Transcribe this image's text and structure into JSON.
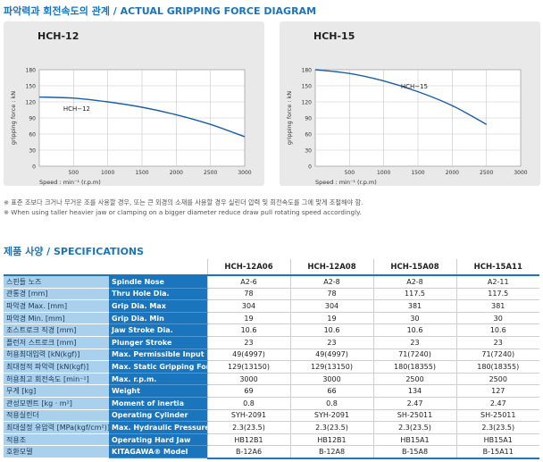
{
  "chart_section_title": "파악력과 회전속도의 관계 / ACTUAL GRIPPING FORCE DIAGRAM",
  "chart_data": [
    {
      "type": "line",
      "title": "HCH-12",
      "xlabel": "Speed : min⁻¹ (r.p.m)",
      "ylabel": "gripping force : kN",
      "xlim": [
        0,
        3000
      ],
      "ylim": [
        0,
        180
      ],
      "xticks": [
        "500",
        "1000",
        "1500",
        "2000",
        "2500",
        "3000"
      ],
      "yticks": [
        "0",
        "30",
        "60",
        "90",
        "120",
        "150",
        "180"
      ],
      "grid": true,
      "series": [
        {
          "name": "HCH−12",
          "x": [
            0,
            500,
            1000,
            1500,
            2000,
            2500,
            3000
          ],
          "y": [
            129,
            127,
            120,
            110,
            96,
            78,
            55
          ]
        }
      ]
    },
    {
      "type": "line",
      "title": "HCH-15",
      "xlabel": "Speed : min⁻¹ (r.p.m)",
      "ylabel": "gripping force : kN",
      "xlim": [
        0,
        3000
      ],
      "ylim": [
        0,
        180
      ],
      "xticks": [
        "500",
        "1000",
        "1500",
        "2000",
        "2500",
        "3000"
      ],
      "yticks": [
        "0",
        "30",
        "60",
        "90",
        "120",
        "150",
        "180"
      ],
      "grid": true,
      "series": [
        {
          "name": "HCH−15",
          "x": [
            0,
            500,
            1000,
            1500,
            2000,
            2500
          ],
          "y": [
            180,
            173,
            159,
            139,
            113,
            78
          ]
        }
      ]
    }
  ],
  "notes": [
    "※ 표준 조보다 크거나 무거운 조를 사용할 경우, 또는 큰 외경의 소재를 사용할 경우 실린더 압력 및 회전속도를 그에 맞게 조절해야 함.",
    "※ When using taller heavier jaw or clamping on a bigger diameter reduce draw pull rotating speed accordingly."
  ],
  "spec_section_title": "제품 사양 / SPECIFICATIONS",
  "spec": {
    "models": [
      "HCH-12A06",
      "HCH-12A08",
      "HCH-15A08",
      "HCH-15A11"
    ],
    "rows": [
      {
        "kr": "스핀들 노즈",
        "en": "Spindle Nose",
        "values": [
          "A2-6",
          "A2-8",
          "A2-8",
          "A2-11"
        ]
      },
      {
        "kr": "관통경 [mm]",
        "en": "Thru Hole Dia.",
        "values": [
          "78",
          "78",
          "117.5",
          "117.5"
        ]
      },
      {
        "kr": "파악경 Max. [mm]",
        "en": "Grip Dia. Max",
        "values": [
          "304",
          "304",
          "381",
          "381"
        ]
      },
      {
        "kr": "파악경 Min. [mm]",
        "en": "Grip Dia. Min",
        "values": [
          "19",
          "19",
          "30",
          "30"
        ]
      },
      {
        "kr": "조스트로크 직경 [mm]",
        "en": "Jaw Stroke Dia.",
        "values": [
          "10.6",
          "10.6",
          "10.6",
          "10.6"
        ]
      },
      {
        "kr": "플런저 스트로크 [mm]",
        "en": "Plunger Stroke",
        "values": [
          "23",
          "23",
          "23",
          "23"
        ]
      },
      {
        "kr": "허용최대입력 [kN(kgf)]",
        "en": "Max. Permissible Input Force",
        "values": [
          "49(4997)",
          "49(4997)",
          "71(7240)",
          "71(7240)"
        ]
      },
      {
        "kr": "최대정적 파악력 [kN(kgf)]",
        "en": "Max. Static Gripping Force",
        "values": [
          "129(13150)",
          "129(13150)",
          "180(18355)",
          "180(18355)"
        ]
      },
      {
        "kr": "허용최고 회전속도 [min⁻¹]",
        "en": "Max. r.p.m.",
        "values": [
          "3000",
          "3000",
          "2500",
          "2500"
        ]
      },
      {
        "kr": "무게 [kg]",
        "en": "Weight",
        "values": [
          "69",
          "66",
          "134",
          "127"
        ]
      },
      {
        "kr": "관성모멘트 [kg · m²]",
        "en": "Moment of inertia",
        "values": [
          "0.8",
          "0.8",
          "2.47",
          "2.47"
        ]
      },
      {
        "kr": "적용실린더",
        "en": "Operating Cylinder",
        "values": [
          "SYH-2091",
          "SYH-2091",
          "SH-25011",
          "SH-25011"
        ]
      },
      {
        "kr": "최대설정 유압력 [MPa(kgf/cm²)]",
        "en": "Max. Hydraulic Pressure",
        "values": [
          "2.3(23.5)",
          "2.3(23.5)",
          "2.3(23.5)",
          "2.3(23.5)"
        ]
      },
      {
        "kr": "적용조",
        "en": "Operating Hard Jaw",
        "values": [
          "HB12B1",
          "HB12B1",
          "HB15A1",
          "HB15A1"
        ]
      },
      {
        "kr": "호환모델",
        "en": "KITAGAWA® Model",
        "values": [
          "B-12A6",
          "B-12A8",
          "B-15A8",
          "B-15A11"
        ]
      }
    ]
  },
  "colors": {
    "accent_blue": "#1a75bc",
    "light_blue": "#a9d1ee",
    "chart_bg": "#e9e9e9",
    "curve": "#1a5da8"
  }
}
